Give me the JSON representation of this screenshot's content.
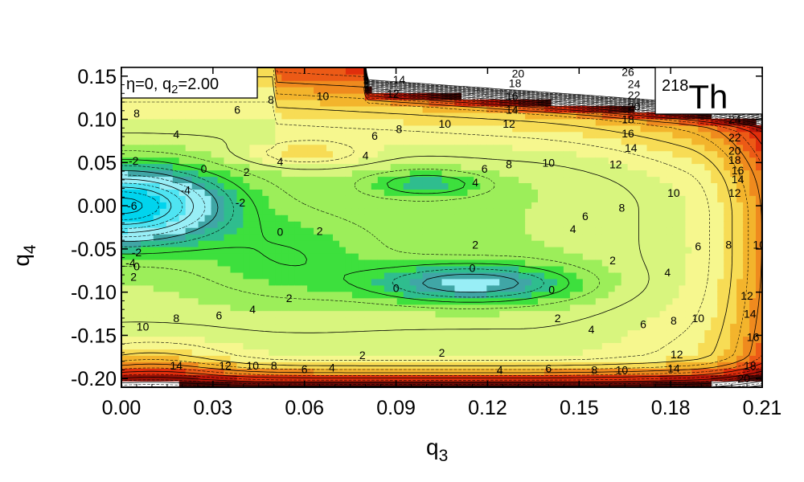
{
  "chart_data": {
    "type": "contour",
    "xlabel_base": "q",
    "xlabel_sub": "3",
    "ylabel_base": "q",
    "ylabel_sub": "4",
    "xlim": [
      0.0,
      0.21
    ],
    "ylim": [
      -0.21,
      0.16
    ],
    "x_ticks": [
      0.0,
      0.03,
      0.06,
      0.09,
      0.12,
      0.15,
      0.18,
      0.21
    ],
    "x_tick_labels": [
      "0.00",
      "0.03",
      "0.06",
      "0.09",
      "0.12",
      "0.15",
      "0.18",
      "0.21"
    ],
    "y_ticks": [
      0.15,
      0.1,
      0.05,
      0.0,
      -0.05,
      -0.1,
      -0.15,
      -0.2
    ],
    "y_tick_labels": [
      "0.15",
      "0.10",
      "0.05",
      "0.00",
      "-0.05",
      "-0.10",
      "-0.15",
      "-0.20"
    ],
    "params_text": "η=0,  q",
    "params_sub": "2",
    "params_value": "=2.00",
    "nucleus_mass": "218",
    "nucleus_symbol": "Th",
    "colorscale": [
      {
        "level": -6,
        "color": "#00d4ee"
      },
      {
        "level": -4,
        "color": "#4fe4f2"
      },
      {
        "level": -2,
        "color": "#98eef6"
      },
      {
        "level": 0,
        "color": "#40a6a6"
      },
      {
        "level": 1,
        "color": "#2fbd8e"
      },
      {
        "level": 2,
        "color": "#3de03d"
      },
      {
        "level": 3,
        "color": "#9cee5a"
      },
      {
        "level": 4,
        "color": "#d8f57e"
      },
      {
        "level": 5,
        "color": "#f6f78e"
      },
      {
        "level": 6,
        "color": "#f7dc55"
      },
      {
        "level": 7,
        "color": "#f3b42c"
      },
      {
        "level": 8,
        "color": "#ef8a1e"
      },
      {
        "level": 9,
        "color": "#ec5a16"
      },
      {
        "level": 10,
        "color": "#e02e0c"
      },
      {
        "level": 11,
        "color": "#bf1608"
      },
      {
        "level": 12,
        "color": "#981006"
      },
      {
        "level": 13,
        "color": "#700b06"
      },
      {
        "level": 14,
        "color": "#4a0704"
      }
    ],
    "contour_labels": [
      {
        "x": 0.0035,
        "y": 0.0,
        "text": "-6"
      },
      {
        "x": 0.021,
        "y": 0.018,
        "text": "-4"
      },
      {
        "x": 0.004,
        "y": 0.052,
        "text": "-2"
      },
      {
        "x": 0.027,
        "y": 0.043,
        "text": "0"
      },
      {
        "x": 0.041,
        "y": 0.039,
        "text": "2"
      },
      {
        "x": 0.052,
        "y": 0.051,
        "text": "4"
      },
      {
        "x": 0.018,
        "y": 0.083,
        "text": "4"
      },
      {
        "x": 0.005,
        "y": 0.107,
        "text": "8"
      },
      {
        "x": 0.038,
        "y": 0.111,
        "text": "6"
      },
      {
        "x": 0.049,
        "y": 0.123,
        "text": "8"
      },
      {
        "x": 0.066,
        "y": 0.127,
        "text": "10"
      },
      {
        "x": 0.089,
        "y": 0.13,
        "text": "12"
      },
      {
        "x": 0.091,
        "y": 0.146,
        "text": "14"
      },
      {
        "x": 0.039,
        "y": 0.004,
        "text": "-2"
      },
      {
        "x": 0.052,
        "y": -0.03,
        "text": "0"
      },
      {
        "x": 0.065,
        "y": -0.029,
        "text": "2"
      },
      {
        "x": 0.08,
        "y": 0.058,
        "text": "4"
      },
      {
        "x": 0.083,
        "y": 0.081,
        "text": "6"
      },
      {
        "x": 0.091,
        "y": 0.089,
        "text": "8"
      },
      {
        "x": 0.106,
        "y": 0.095,
        "text": "10"
      },
      {
        "x": 0.127,
        "y": 0.095,
        "text": "12"
      },
      {
        "x": 0.128,
        "y": 0.111,
        "text": "14"
      },
      {
        "x": 0.128,
        "y": 0.127,
        "text": "16"
      },
      {
        "x": 0.129,
        "y": 0.142,
        "text": "18"
      },
      {
        "x": 0.13,
        "y": 0.153,
        "text": "20"
      },
      {
        "x": 0.116,
        "y": 0.027,
        "text": "4"
      },
      {
        "x": 0.119,
        "y": 0.043,
        "text": "6"
      },
      {
        "x": 0.127,
        "y": 0.048,
        "text": "8"
      },
      {
        "x": 0.14,
        "y": 0.05,
        "text": "10"
      },
      {
        "x": 0.162,
        "y": 0.048,
        "text": "12"
      },
      {
        "x": 0.167,
        "y": 0.067,
        "text": "14"
      },
      {
        "x": 0.166,
        "y": 0.084,
        "text": "16"
      },
      {
        "x": 0.166,
        "y": 0.1,
        "text": "18"
      },
      {
        "x": 0.168,
        "y": 0.115,
        "text": "20"
      },
      {
        "x": 0.168,
        "y": 0.128,
        "text": "22"
      },
      {
        "x": 0.168,
        "y": 0.141,
        "text": "24"
      },
      {
        "x": 0.166,
        "y": 0.155,
        "text": "26"
      },
      {
        "x": 0.164,
        "y": -0.002,
        "text": "8"
      },
      {
        "x": 0.152,
        "y": -0.012,
        "text": "6"
      },
      {
        "x": 0.148,
        "y": -0.027,
        "text": "4"
      },
      {
        "x": 0.181,
        "y": 0.015,
        "text": "10"
      },
      {
        "x": 0.116,
        "y": -0.045,
        "text": "2"
      },
      {
        "x": 0.115,
        "y": -0.072,
        "text": "0"
      },
      {
        "x": 0.09,
        "y": -0.095,
        "text": "0"
      },
      {
        "x": 0.141,
        "y": -0.097,
        "text": "0"
      },
      {
        "x": 0.161,
        "y": -0.063,
        "text": "2"
      },
      {
        "x": 0.179,
        "y": -0.077,
        "text": "4"
      },
      {
        "x": 0.189,
        "y": -0.047,
        "text": "6"
      },
      {
        "x": 0.199,
        "y": -0.045,
        "text": "8"
      },
      {
        "x": 0.209,
        "y": -0.045,
        "text": "10"
      },
      {
        "x": 0.055,
        "y": -0.107,
        "text": "2"
      },
      {
        "x": 0.043,
        "y": -0.12,
        "text": "4"
      },
      {
        "x": 0.032,
        "y": -0.127,
        "text": "6"
      },
      {
        "x": 0.018,
        "y": -0.13,
        "text": "8"
      },
      {
        "x": 0.007,
        "y": -0.14,
        "text": "10"
      },
      {
        "x": 0.003,
        "y": -0.066,
        "text": "-4"
      },
      {
        "x": 0.005,
        "y": -0.054,
        "text": "-2"
      },
      {
        "x": 0.005,
        "y": -0.07,
        "text": "0"
      },
      {
        "x": 0.004,
        "y": -0.082,
        "text": "2"
      },
      {
        "x": 0.079,
        "y": -0.173,
        "text": "2"
      },
      {
        "x": 0.105,
        "y": -0.17,
        "text": "2"
      },
      {
        "x": 0.143,
        "y": -0.13,
        "text": "2"
      },
      {
        "x": 0.154,
        "y": -0.143,
        "text": "4"
      },
      {
        "x": 0.171,
        "y": -0.137,
        "text": "6"
      },
      {
        "x": 0.181,
        "y": -0.133,
        "text": "8"
      },
      {
        "x": 0.189,
        "y": -0.13,
        "text": "10"
      },
      {
        "x": 0.205,
        "y": -0.104,
        "text": "12"
      },
      {
        "x": 0.206,
        "y": -0.125,
        "text": "14"
      },
      {
        "x": 0.207,
        "y": -0.152,
        "text": "16"
      },
      {
        "x": 0.206,
        "y": -0.185,
        "text": "18"
      },
      {
        "x": 0.204,
        "y": -0.2,
        "text": "20"
      },
      {
        "x": 0.018,
        "y": -0.185,
        "text": "14"
      },
      {
        "x": 0.034,
        "y": -0.185,
        "text": "12"
      },
      {
        "x": 0.043,
        "y": -0.185,
        "text": "10"
      },
      {
        "x": 0.05,
        "y": -0.185,
        "text": "8"
      },
      {
        "x": 0.06,
        "y": -0.189,
        "text": "6"
      },
      {
        "x": 0.069,
        "y": -0.187,
        "text": "4"
      },
      {
        "x": 0.124,
        "y": -0.19,
        "text": "4"
      },
      {
        "x": 0.14,
        "y": -0.188,
        "text": "6"
      },
      {
        "x": 0.155,
        "y": -0.19,
        "text": "8"
      },
      {
        "x": 0.164,
        "y": -0.19,
        "text": "10"
      },
      {
        "x": 0.182,
        "y": -0.172,
        "text": "12"
      },
      {
        "x": 0.181,
        "y": -0.188,
        "text": "14"
      },
      {
        "x": 0.201,
        "y": 0.1,
        "text": "24"
      },
      {
        "x": 0.201,
        "y": 0.079,
        "text": "22"
      },
      {
        "x": 0.201,
        "y": 0.064,
        "text": "20"
      },
      {
        "x": 0.201,
        "y": 0.053,
        "text": "18"
      },
      {
        "x": 0.202,
        "y": 0.041,
        "text": "16"
      },
      {
        "x": 0.202,
        "y": 0.031,
        "text": "14"
      },
      {
        "x": 0.201,
        "y": 0.015,
        "text": "12"
      }
    ]
  }
}
